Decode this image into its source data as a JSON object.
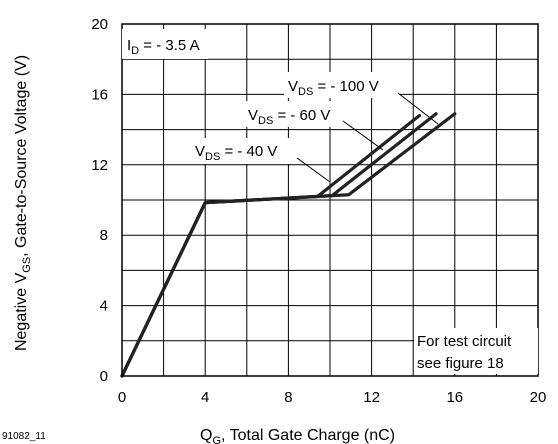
{
  "figure_id": "91082_11",
  "chart_data": {
    "type": "line",
    "xlabel": {
      "pre": "Q",
      "sub": "G",
      "post": ", Total Gate Charge (nC)"
    },
    "ylabel": {
      "pre": "Negative V",
      "sub": "GS",
      "post": ", Gate-to-Source Voltage (V)"
    },
    "xlim": [
      0,
      20
    ],
    "ylim": [
      0,
      20
    ],
    "x_ticks": [
      0,
      4,
      8,
      12,
      16,
      20
    ],
    "y_ticks": [
      0,
      4,
      8,
      12,
      16,
      20
    ],
    "x_minor_step": 2,
    "y_minor_step": 2,
    "grid": true,
    "condition": {
      "pre": "I",
      "sub": "D",
      "post": " = - 3.5 A"
    },
    "note": [
      "For test circuit",
      "see figure 18"
    ],
    "series": [
      {
        "name": {
          "pre": "V",
          "sub": "DS",
          "post": " = - 40 V"
        },
        "x": [
          0,
          4,
          9.4,
          14.3
        ],
        "y": [
          0,
          9.85,
          10.2,
          14.8
        ]
      },
      {
        "name": {
          "pre": "V",
          "sub": "DS",
          "post": " = - 60 V"
        },
        "x": [
          0,
          4,
          10.1,
          15.1
        ],
        "y": [
          0,
          9.85,
          10.25,
          14.9
        ]
      },
      {
        "name": {
          "pre": "V",
          "sub": "DS",
          "post": " = - 100 V"
        },
        "x": [
          0,
          4,
          10.9,
          16
        ],
        "y": [
          0,
          9.85,
          10.3,
          14.9
        ]
      }
    ]
  }
}
